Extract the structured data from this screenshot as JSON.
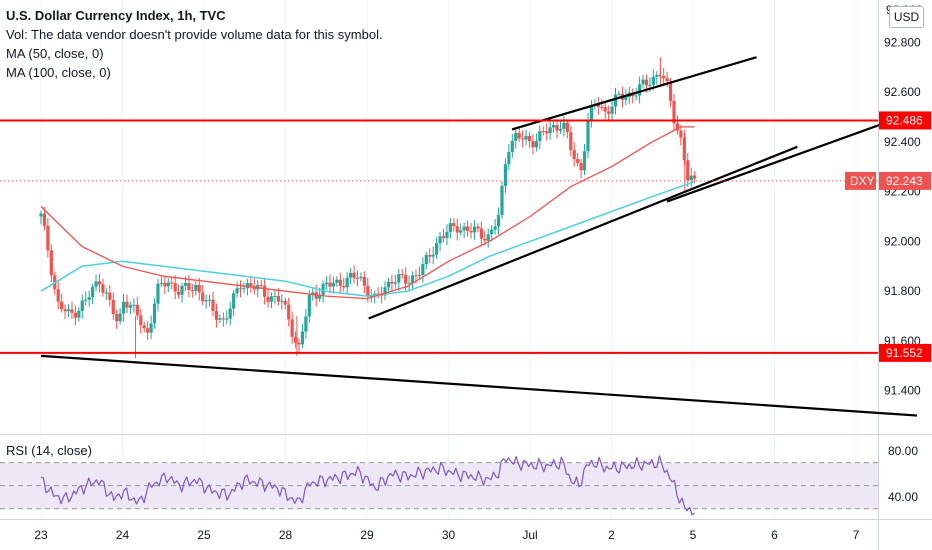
{
  "legend": {
    "title": "U.S. Dollar Currency Index, 1h, TVC",
    "vol": "Vol: The data vendor doesn't provide volume data for this symbol.",
    "ma50": "MA (50, close, 0)",
    "ma100": "MA (100, close, 0)",
    "rsi": "RSI (14, close)"
  },
  "currency_button": "USD",
  "colors": {
    "up": "#26a69a",
    "down": "#ef5350",
    "ma50": "#ef5350",
    "ma100": "#4dd0e1",
    "level": "#ff0000",
    "trendline": "#000000",
    "rsi_line": "#7e57c2",
    "rsi_band": "#ede7f6"
  },
  "chart_data": [
    {
      "type": "candlestick",
      "symbol": "DXY",
      "title": "U.S. Dollar Currency Index, 1h, TVC",
      "x_ticks": [
        "23",
        "24",
        "25",
        "28",
        "29",
        "30",
        "Jul",
        "2",
        "5",
        "6",
        "7"
      ],
      "y_ticks": [
        "92.800",
        "92.600",
        "92.400",
        "92.200",
        "92.000",
        "91.800",
        "91.600",
        "91.400"
      ],
      "ylim": [
        91.23,
        92.97
      ],
      "top_tick_partial": "92.000",
      "last_price": 92.243,
      "last_price_label": "DXY",
      "last_price_text": "92.243",
      "horizontal_levels": [
        {
          "value": 92.486,
          "label": "92.486"
        },
        {
          "value": 91.552,
          "label": "91.552"
        }
      ],
      "trend_lines": [
        {
          "from": {
            "day": 4.02,
            "price": 91.69
          },
          "to": {
            "day": 9.28,
            "price": 92.38
          }
        },
        {
          "from": {
            "day": 5.78,
            "price": 92.45
          },
          "to": {
            "day": 8.78,
            "price": 92.74
          }
        },
        {
          "from": {
            "day": 7.68,
            "price": 92.16
          },
          "to": {
            "day": 10.39,
            "price": 92.48
          }
        },
        {
          "from": {
            "day": 0.0,
            "price": 91.54
          },
          "to": {
            "day": 10.75,
            "price": 91.3
          }
        }
      ],
      "anchors": [
        [
          0.0,
          92.1
        ],
        [
          0.08,
          91.98
        ],
        [
          0.2,
          91.75
        ],
        [
          0.35,
          91.7
        ],
        [
          0.55,
          91.76
        ],
        [
          0.72,
          91.85
        ],
        [
          0.95,
          91.66
        ],
        [
          1.02,
          91.78
        ],
        [
          1.18,
          91.7
        ],
        [
          1.3,
          91.62
        ],
        [
          1.42,
          91.8
        ],
        [
          1.55,
          91.84
        ],
        [
          1.7,
          91.8
        ],
        [
          1.9,
          91.82
        ],
        [
          2.1,
          91.72
        ],
        [
          2.25,
          91.68
        ],
        [
          2.45,
          91.83
        ],
        [
          2.6,
          91.82
        ],
        [
          2.8,
          91.78
        ],
        [
          2.95,
          91.76
        ],
        [
          3.05,
          91.68
        ],
        [
          3.16,
          91.56
        ],
        [
          3.3,
          91.78
        ],
        [
          3.5,
          91.82
        ],
        [
          3.7,
          91.84
        ],
        [
          3.9,
          91.86
        ],
        [
          4.1,
          91.76
        ],
        [
          4.3,
          91.85
        ],
        [
          4.5,
          91.84
        ],
        [
          4.7,
          91.9
        ],
        [
          4.9,
          92.02
        ],
        [
          5.1,
          92.06
        ],
        [
          5.3,
          92.04
        ],
        [
          5.5,
          92.02
        ],
        [
          5.62,
          92.1
        ],
        [
          5.72,
          92.38
        ],
        [
          5.82,
          92.42
        ],
        [
          6.0,
          92.4
        ],
        [
          6.2,
          92.44
        ],
        [
          6.4,
          92.48
        ],
        [
          6.52,
          92.35
        ],
        [
          6.62,
          92.28
        ],
        [
          6.72,
          92.5
        ],
        [
          6.82,
          92.56
        ],
        [
          6.92,
          92.52
        ],
        [
          7.1,
          92.58
        ],
        [
          7.3,
          92.6
        ],
        [
          7.48,
          92.65
        ],
        [
          7.6,
          92.68
        ],
        [
          7.7,
          92.6
        ],
        [
          7.78,
          92.48
        ],
        [
          7.86,
          92.4
        ],
        [
          7.94,
          92.24
        ],
        [
          8.02,
          92.24
        ]
      ],
      "ma50": [
        [
          0.0,
          92.14
        ],
        [
          0.5,
          91.98
        ],
        [
          1.0,
          91.9
        ],
        [
          1.5,
          91.86
        ],
        [
          2.0,
          91.84
        ],
        [
          2.5,
          91.82
        ],
        [
          3.0,
          91.8
        ],
        [
          3.5,
          91.78
        ],
        [
          4.0,
          91.77
        ],
        [
          4.5,
          91.82
        ],
        [
          5.0,
          91.92
        ],
        [
          5.5,
          92.0
        ],
        [
          6.0,
          92.1
        ],
        [
          6.5,
          92.22
        ],
        [
          7.0,
          92.3
        ],
        [
          7.5,
          92.4
        ],
        [
          7.85,
          92.46
        ],
        [
          8.02,
          92.46
        ]
      ],
      "ma100": [
        [
          0.0,
          91.8
        ],
        [
          0.5,
          91.9
        ],
        [
          1.0,
          91.92
        ],
        [
          1.5,
          91.9
        ],
        [
          2.0,
          91.88
        ],
        [
          2.5,
          91.86
        ],
        [
          3.0,
          91.84
        ],
        [
          3.5,
          91.8
        ],
        [
          4.0,
          91.78
        ],
        [
          4.5,
          91.8
        ],
        [
          5.0,
          91.86
        ],
        [
          5.5,
          91.94
        ],
        [
          6.0,
          92.0
        ],
        [
          6.5,
          92.06
        ],
        [
          7.0,
          92.12
        ],
        [
          7.5,
          92.18
        ],
        [
          7.85,
          92.22
        ],
        [
          8.02,
          92.24
        ]
      ]
    },
    {
      "type": "line",
      "name": "RSI (14, close)",
      "y_ticks": [
        "80.00",
        "40.00"
      ],
      "ylim": [
        22,
        93
      ],
      "band": [
        30,
        70
      ],
      "mid": 50,
      "anchors": [
        [
          0.0,
          55
        ],
        [
          0.15,
          42
        ],
        [
          0.3,
          38
        ],
        [
          0.5,
          48
        ],
        [
          0.7,
          55
        ],
        [
          0.9,
          38
        ],
        [
          1.0,
          45
        ],
        [
          1.2,
          35
        ],
        [
          1.35,
          50
        ],
        [
          1.55,
          58
        ],
        [
          1.7,
          50
        ],
        [
          1.9,
          55
        ],
        [
          2.1,
          45
        ],
        [
          2.3,
          42
        ],
        [
          2.5,
          55
        ],
        [
          2.7,
          52
        ],
        [
          2.9,
          48
        ],
        [
          3.05,
          40
        ],
        [
          3.15,
          35
        ],
        [
          3.3,
          52
        ],
        [
          3.5,
          55
        ],
        [
          3.7,
          58
        ],
        [
          3.9,
          62
        ],
        [
          4.1,
          48
        ],
        [
          4.3,
          60
        ],
        [
          4.5,
          58
        ],
        [
          4.7,
          62
        ],
        [
          4.9,
          65
        ],
        [
          5.1,
          60
        ],
        [
          5.3,
          58
        ],
        [
          5.5,
          55
        ],
        [
          5.62,
          62
        ],
        [
          5.7,
          75
        ],
        [
          5.8,
          70
        ],
        [
          6.0,
          68
        ],
        [
          6.2,
          67
        ],
        [
          6.4,
          70
        ],
        [
          6.5,
          55
        ],
        [
          6.6,
          50
        ],
        [
          6.7,
          68
        ],
        [
          6.8,
          70
        ],
        [
          6.95,
          65
        ],
        [
          7.1,
          66
        ],
        [
          7.3,
          68
        ],
        [
          7.48,
          69
        ],
        [
          7.6,
          70
        ],
        [
          7.7,
          60
        ],
        [
          7.8,
          45
        ],
        [
          7.9,
          30
        ],
        [
          8.02,
          28
        ]
      ]
    }
  ]
}
